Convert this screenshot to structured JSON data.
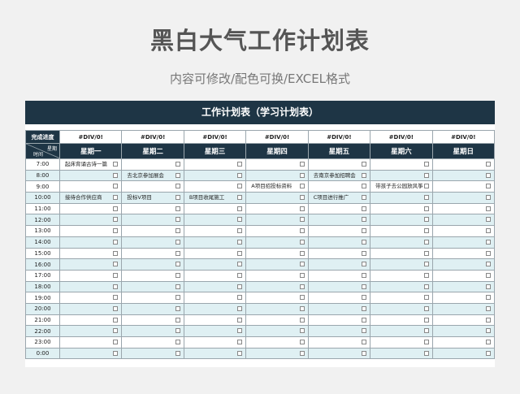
{
  "title": "黑白大气工作计划表",
  "subtitle": "内容可修改/配色可换/EXCEL格式",
  "sheet_title": "工作计划表（学习计划表）",
  "completion_label": "完成进度",
  "completion": [
    "#DIV/0!",
    "#DIV/0!",
    "#DIV/0!",
    "#DIV/0!",
    "#DIV/0!",
    "#DIV/0!",
    "#DIV/0!"
  ],
  "corner_top": "星期",
  "corner_bottom": "时间",
  "days": [
    "星期一",
    "星期二",
    "星期三",
    "星期四",
    "星期五",
    "星期六",
    "星期日"
  ],
  "rows": [
    {
      "time": "7:00",
      "tasks": [
        "起床背诵古诗一篇",
        "",
        "",
        "",
        "",
        "",
        ""
      ]
    },
    {
      "time": "8:00",
      "tasks": [
        "",
        "去北京参加展会",
        "",
        "",
        "去南京参加招聘会",
        "",
        ""
      ]
    },
    {
      "time": "9:00",
      "tasks": [
        "",
        "",
        "",
        "A项目招投标资料",
        "",
        "带孩子去公园放风筝",
        ""
      ]
    },
    {
      "time": "10:00",
      "tasks": [
        "接待合作供应商",
        "投标V项目",
        "B项目收尾施工",
        "",
        "C项目进行推广",
        "",
        ""
      ]
    },
    {
      "time": "11:00",
      "tasks": [
        "",
        "",
        "",
        "",
        "",
        "",
        ""
      ]
    },
    {
      "time": "12:00",
      "tasks": [
        "",
        "",
        "",
        "",
        "",
        "",
        ""
      ]
    },
    {
      "time": "13:00",
      "tasks": [
        "",
        "",
        "",
        "",
        "",
        "",
        ""
      ]
    },
    {
      "time": "14:00",
      "tasks": [
        "",
        "",
        "",
        "",
        "",
        "",
        ""
      ]
    },
    {
      "time": "15:00",
      "tasks": [
        "",
        "",
        "",
        "",
        "",
        "",
        ""
      ]
    },
    {
      "time": "16:00",
      "tasks": [
        "",
        "",
        "",
        "",
        "",
        "",
        ""
      ]
    },
    {
      "time": "17:00",
      "tasks": [
        "",
        "",
        "",
        "",
        "",
        "",
        ""
      ]
    },
    {
      "time": "18:00",
      "tasks": [
        "",
        "",
        "",
        "",
        "",
        "",
        ""
      ]
    },
    {
      "time": "19:00",
      "tasks": [
        "",
        "",
        "",
        "",
        "",
        "",
        ""
      ]
    },
    {
      "time": "20:00",
      "tasks": [
        "",
        "",
        "",
        "",
        "",
        "",
        ""
      ]
    },
    {
      "time": "21:00",
      "tasks": [
        "",
        "",
        "",
        "",
        "",
        "",
        ""
      ]
    },
    {
      "time": "22:00",
      "tasks": [
        "",
        "",
        "",
        "",
        "",
        "",
        ""
      ]
    },
    {
      "time": "23:00",
      "tasks": [
        "",
        "",
        "",
        "",
        "",
        "",
        ""
      ]
    },
    {
      "time": "0:00",
      "tasks": [
        "",
        "",
        "",
        "",
        "",
        "",
        ""
      ]
    }
  ],
  "colors": {
    "header_bg": "#1e3545",
    "stripe": "#dff0f3",
    "page_bg": "#f1f1f1"
  }
}
